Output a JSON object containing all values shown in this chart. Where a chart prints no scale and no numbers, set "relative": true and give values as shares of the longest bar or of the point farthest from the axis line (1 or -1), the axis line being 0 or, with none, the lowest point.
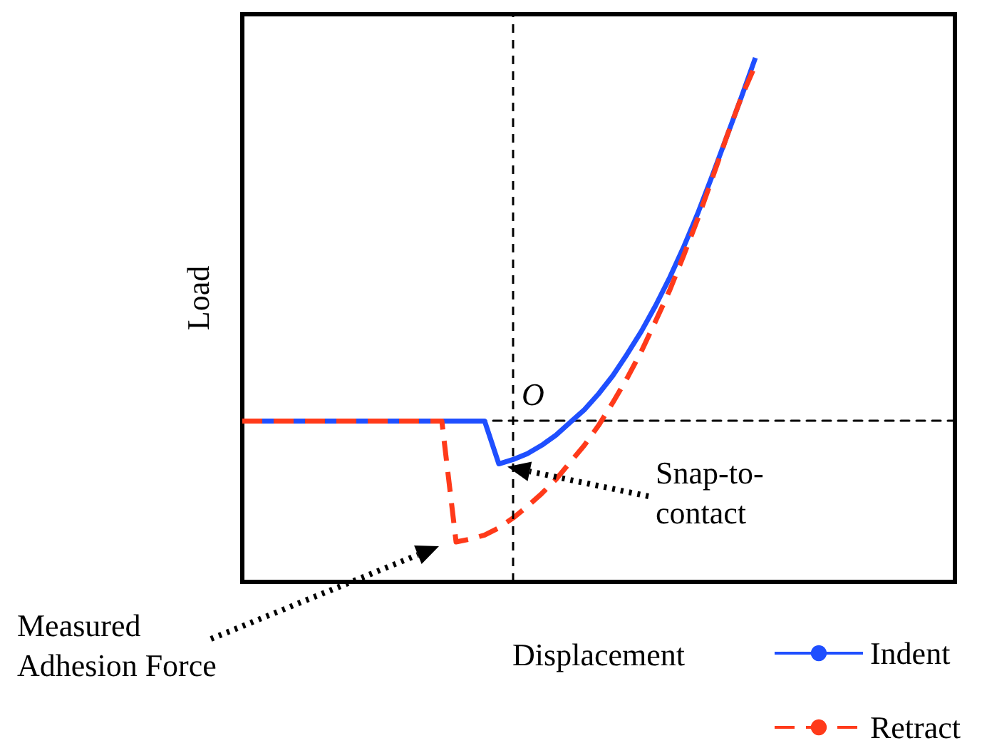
{
  "chart_data": {
    "type": "line",
    "relative": true,
    "xlabel": "Displacement",
    "ylabel": "Load",
    "categories": [
      null,
      null,
      null,
      null,
      null,
      null,
      null,
      null,
      null,
      null,
      null,
      null,
      null,
      null,
      null,
      null,
      null,
      null,
      null,
      null,
      null,
      null,
      null,
      null,
      null,
      null,
      null,
      null,
      null,
      null,
      null,
      null,
      null,
      null,
      null,
      null,
      null
    ],
    "series": [
      {
        "name": "Indent",
        "color": "#1f4fff",
        "line_style": "solid",
        "values": [
          0,
          0,
          0,
          0,
          0,
          0,
          0,
          0,
          0,
          0,
          0,
          0,
          0,
          0,
          0,
          0,
          0,
          0,
          -0.118,
          -0.106,
          -0.09,
          -0.067,
          -0.039,
          -0.004,
          0.031,
          0.075,
          0.125,
          0.184,
          0.247,
          0.318,
          0.396,
          0.482,
          0.576,
          0.678,
          0.784,
          0.89,
          1
        ]
      },
      {
        "name": "Retract",
        "color": "#ff3a1a",
        "line_style": "dashed",
        "values": [
          0,
          0,
          0,
          0,
          0,
          0,
          0,
          0,
          0,
          0,
          0,
          0,
          0,
          0,
          0,
          -0.333,
          -0.325,
          -0.314,
          -0.294,
          -0.267,
          -0.235,
          -0.2,
          -0.161,
          -0.114,
          -0.067,
          -0.012,
          0.051,
          0.118,
          0.192,
          0.275,
          0.361,
          0.459,
          0.561,
          0.671,
          0.784,
          0.89,
          0.98
        ]
      }
    ],
    "annotations": [
      "Snap-to-contact",
      "Measured Adhesion Force",
      "O"
    ],
    "marker": "none",
    "legend": "bottom right",
    "grid": false
  }
}
